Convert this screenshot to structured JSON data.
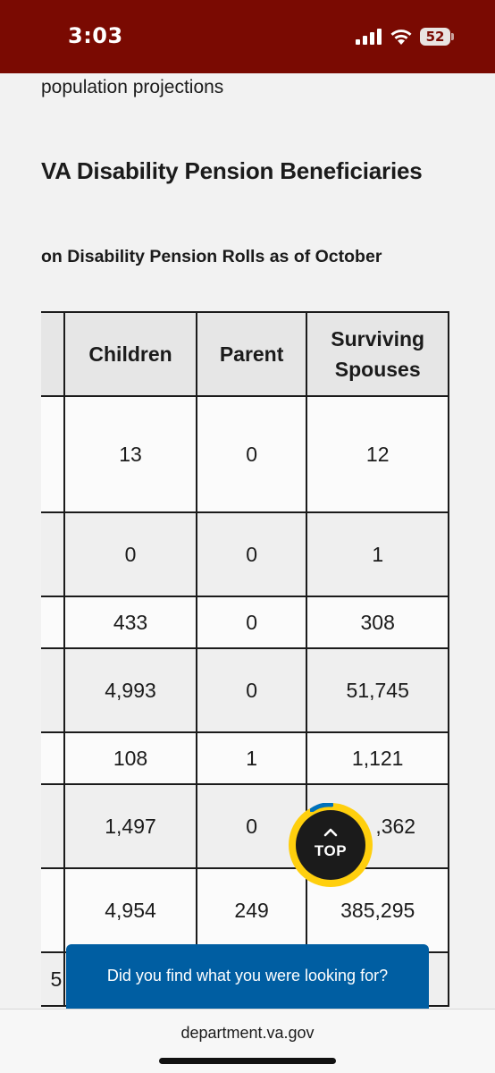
{
  "status_bar": {
    "time": "3:03",
    "battery": "52",
    "icons": [
      "cellular-signal-icon",
      "wifi-icon",
      "battery-icon"
    ]
  },
  "article": {
    "previous_line": "population projections",
    "title": "VA Disability Pension Beneficiaries",
    "table_caption": "on Disability Pension Rolls as of October"
  },
  "table": {
    "headers": [
      "",
      "Children",
      "Parent",
      "Surviving Spouses"
    ],
    "rows": [
      {
        "cells": [
          "",
          "13",
          "0",
          "12"
        ]
      },
      {
        "cells": [
          "",
          "0",
          "0",
          "1"
        ]
      },
      {
        "cells": [
          "",
          "433",
          "0",
          "308"
        ]
      },
      {
        "cells": [
          "",
          "4,993",
          "0",
          "51,745"
        ]
      },
      {
        "cells": [
          "",
          "108",
          "1",
          "1,121"
        ]
      },
      {
        "cells": [
          "",
          "1,497",
          "0",
          ",362"
        ]
      },
      {
        "cells": [
          "",
          "4,954",
          "249",
          "385,295"
        ]
      },
      {
        "cells": [
          "5",
          "",
          "",
          ""
        ]
      }
    ]
  },
  "back_to_top": {
    "label": "TOP",
    "ring_color": "#ffcf0d",
    "icon": "chevron-up-icon"
  },
  "feedback": {
    "label": "Did you find what you were looking for?"
  },
  "browser": {
    "url": "department.va.gov"
  },
  "colors": {
    "status_bar": "#7a0a02",
    "feedback_bg": "#005ea2"
  }
}
